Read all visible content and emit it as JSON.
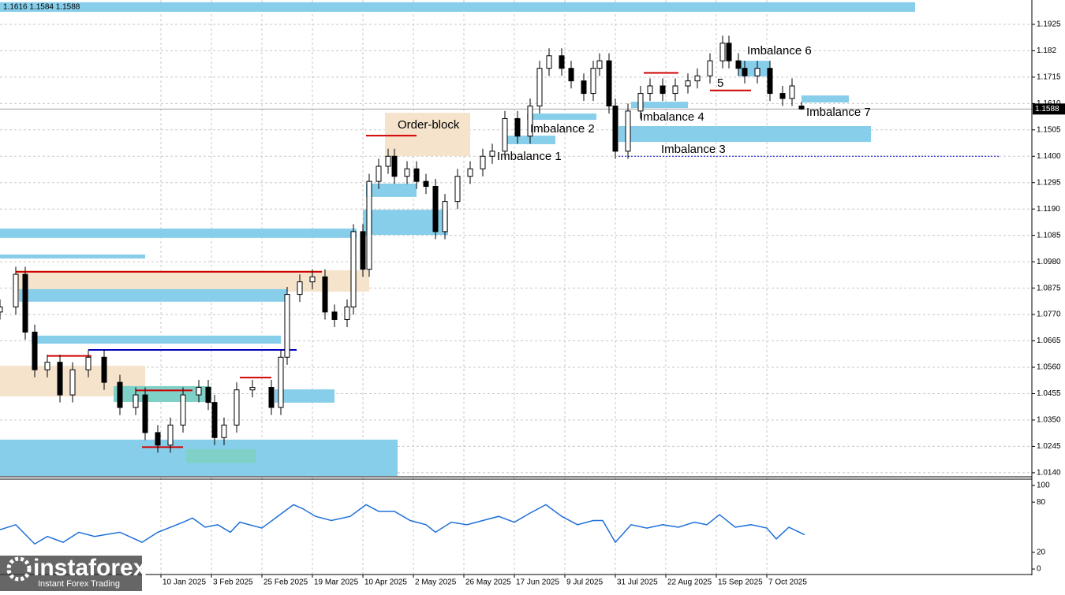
{
  "chart_data": {
    "type": "candlestick",
    "header_text": "1.1616 1.1584 1.1588",
    "last_price": 1.1588,
    "xlim": [
      0,
      327
    ],
    "ylim": [
      1.0124,
      1.2022
    ],
    "grid": true,
    "up_color": "#ffffff",
    "down_color": "#000000",
    "x": [
      0,
      5,
      8,
      11,
      15,
      19,
      23,
      28,
      33,
      38,
      43,
      46,
      50,
      54,
      58,
      63,
      66,
      68,
      71,
      75,
      80,
      86,
      89,
      91,
      95,
      99,
      103,
      106,
      110,
      112,
      115,
      117,
      120,
      123,
      125,
      129,
      132,
      135,
      138,
      141,
      145,
      149,
      153,
      156,
      160,
      164,
      168,
      171,
      174,
      178,
      181,
      185,
      188,
      190,
      193,
      195,
      199,
      203,
      206,
      210,
      214,
      218,
      221,
      225,
      229,
      231,
      234,
      236,
      240,
      244,
      248,
      251,
      254
    ],
    "open": [
      1.078,
      1.08,
      1.093,
      1.07,
      1.055,
      1.058,
      1.045,
      1.055,
      1.06,
      1.05,
      1.04,
      1.045,
      1.03,
      1.025,
      1.033,
      1.045,
      1.048,
      1.042,
      1.028,
      1.033,
      1.047,
      1.048,
      1.04,
      1.06,
      1.085,
      1.09,
      1.092,
      1.078,
      1.075,
      1.08,
      1.11,
      1.095,
      1.13,
      1.136,
      1.14,
      1.132,
      1.135,
      1.13,
      1.128,
      1.11,
      1.122,
      1.132,
      1.135,
      1.14,
      1.142,
      1.155,
      1.148,
      1.16,
      1.175,
      1.18,
      1.175,
      1.17,
      1.165,
      1.175,
      1.178,
      1.16,
      1.142,
      1.158,
      1.165,
      1.168,
      1.165,
      1.168,
      1.17,
      1.172,
      1.178,
      1.185,
      1.178,
      1.175,
      1.172,
      1.175,
      1.165,
      1.163,
      1.16
    ],
    "high": [
      1.083,
      1.096,
      1.096,
      1.073,
      1.061,
      1.061,
      1.058,
      1.063,
      1.063,
      1.053,
      1.048,
      1.048,
      1.033,
      1.036,
      1.048,
      1.051,
      1.051,
      1.045,
      1.036,
      1.05,
      1.051,
      1.051,
      1.063,
      1.088,
      1.093,
      1.095,
      1.095,
      1.081,
      1.083,
      1.113,
      1.113,
      1.133,
      1.139,
      1.143,
      1.143,
      1.138,
      1.138,
      1.133,
      1.131,
      1.125,
      1.135,
      1.138,
      1.143,
      1.145,
      1.158,
      1.158,
      1.163,
      1.178,
      1.183,
      1.183,
      1.178,
      1.173,
      1.178,
      1.181,
      1.181,
      1.163,
      1.161,
      1.168,
      1.171,
      1.171,
      1.171,
      1.173,
      1.175,
      1.181,
      1.188,
      1.188,
      1.181,
      1.178,
      1.178,
      1.178,
      1.168,
      1.171,
      1.1616
    ],
    "low": [
      1.075,
      1.077,
      1.067,
      1.052,
      1.052,
      1.042,
      1.042,
      1.052,
      1.047,
      1.037,
      1.037,
      1.027,
      1.022,
      1.022,
      1.03,
      1.042,
      1.039,
      1.025,
      1.025,
      1.03,
      1.044,
      1.037,
      1.037,
      1.057,
      1.082,
      1.087,
      1.075,
      1.072,
      1.072,
      1.077,
      1.092,
      1.092,
      1.127,
      1.133,
      1.129,
      1.129,
      1.127,
      1.125,
      1.107,
      1.107,
      1.119,
      1.129,
      1.132,
      1.137,
      1.139,
      1.145,
      1.145,
      1.157,
      1.172,
      1.172,
      1.167,
      1.162,
      1.162,
      1.172,
      1.157,
      1.139,
      1.139,
      1.155,
      1.162,
      1.162,
      1.162,
      1.165,
      1.167,
      1.169,
      1.175,
      1.175,
      1.172,
      1.169,
      1.169,
      1.162,
      1.16,
      1.16,
      1.1584
    ],
    "close": [
      1.08,
      1.093,
      1.07,
      1.055,
      1.058,
      1.045,
      1.055,
      1.06,
      1.05,
      1.04,
      1.045,
      1.03,
      1.025,
      1.033,
      1.045,
      1.048,
      1.042,
      1.028,
      1.033,
      1.047,
      1.048,
      1.04,
      1.06,
      1.085,
      1.09,
      1.092,
      1.078,
      1.075,
      1.08,
      1.11,
      1.095,
      1.13,
      1.136,
      1.14,
      1.132,
      1.135,
      1.13,
      1.128,
      1.11,
      1.122,
      1.132,
      1.135,
      1.14,
      1.142,
      1.155,
      1.148,
      1.16,
      1.175,
      1.18,
      1.175,
      1.17,
      1.165,
      1.175,
      1.178,
      1.16,
      1.142,
      1.158,
      1.165,
      1.168,
      1.165,
      1.168,
      1.17,
      1.172,
      1.178,
      1.185,
      1.178,
      1.175,
      1.172,
      1.175,
      1.165,
      1.163,
      1.168,
      1.1588
    ],
    "yticks": [
      1.1925,
      1.182,
      1.1715,
      {
        "value": 1.161,
        "label": "1.1610"
      },
      1.1505,
      {
        "value": 1.14,
        "label": "1.1400"
      },
      1.1295,
      {
        "value": 1.119,
        "label": "1.1190"
      },
      1.1085,
      {
        "value": 1.098,
        "label": "1.0980"
      },
      1.0875,
      {
        "value": 1.077,
        "label": "1.0770"
      },
      1.0665,
      {
        "value": 1.056,
        "label": "1.0560"
      },
      1.0455,
      {
        "value": 1.035,
        "label": "1.0350"
      },
      1.0245,
      {
        "value": 1.014,
        "label": "1.0140"
      }
    ],
    "xticks": [
      {
        "value": 51,
        "label": "10 Jan 2025"
      },
      {
        "value": 67,
        "label": "3 Feb 2025"
      },
      {
        "value": 83,
        "label": "25 Feb 2025"
      },
      {
        "value": 99,
        "label": "19 Mar 2025"
      },
      {
        "value": 115,
        "label": "10 Apr 2025"
      },
      {
        "value": 131,
        "label": "2 May 2025"
      },
      {
        "value": 147,
        "label": "26 May 2025"
      },
      {
        "value": 163,
        "label": "17 Jun 2025"
      },
      {
        "value": 179,
        "label": "9 Jul 2025"
      },
      {
        "value": 195,
        "label": "31 Jul 2025"
      },
      {
        "value": 211,
        "label": "22 Aug 2025"
      },
      {
        "value": 227,
        "label": "15 Sep 2025"
      },
      {
        "value": 243,
        "label": "7 Oct 2025"
      }
    ],
    "zones": [
      {
        "x0": 0,
        "x1": 290,
        "y0": 1.1975,
        "y1": 1.2013,
        "color": "#87ceeb"
      },
      {
        "x0": 0,
        "x1": 126,
        "y0": 1.0127,
        "y1": 1.0272,
        "color": "#87ceeb"
      },
      {
        "x0": 0,
        "x1": 46,
        "y0": 1.0444,
        "y1": 1.0566,
        "color": "#f5e3cc"
      },
      {
        "x0": 5,
        "x1": 117,
        "y0": 1.0861,
        "y1": 1.0946,
        "color": "#f5e3cc"
      },
      {
        "x0": 122,
        "x1": 149,
        "y0": 1.1401,
        "y1": 1.1573,
        "color": "#f5e3cc"
      },
      {
        "x0": 0,
        "x1": 113,
        "y0": 1.1075,
        "y1": 1.1112,
        "color": "#87ceeb"
      },
      {
        "x0": 0,
        "x1": 46,
        "y0": 1.0993,
        "y1": 1.1009,
        "color": "#87ceeb"
      },
      {
        "x0": 6,
        "x1": 91,
        "y0": 1.0821,
        "y1": 1.0871,
        "color": "#87ceeb"
      },
      {
        "x0": 10,
        "x1": 89,
        "y0": 1.0654,
        "y1": 1.0686,
        "color": "#87ceeb"
      },
      {
        "x0": 87,
        "x1": 106,
        "y0": 1.0419,
        "y1": 1.0472,
        "color": "#87ceeb"
      },
      {
        "x0": 36,
        "x1": 67,
        "y0": 1.0422,
        "y1": 1.0485,
        "color": "#7fd1c8"
      },
      {
        "x0": 59,
        "x1": 81,
        "y0": 1.0178,
        "y1": 1.0234,
        "color": "#7fd1c8"
      },
      {
        "x0": 115,
        "x1": 142,
        "y0": 1.1087,
        "y1": 1.1187,
        "color": "#87ceeb"
      },
      {
        "x0": 116,
        "x1": 132,
        "y0": 1.1238,
        "y1": 1.1291,
        "color": "#87ceeb"
      },
      {
        "x0": 160,
        "x1": 176,
        "y0": 1.1448,
        "y1": 1.1482,
        "color": "#87ceeb"
      },
      {
        "x0": 167,
        "x1": 189,
        "y0": 1.1545,
        "y1": 1.157,
        "color": "#87ceeb"
      },
      {
        "x0": 196,
        "x1": 276,
        "y0": 1.1457,
        "y1": 1.152,
        "color": "#87ceeb"
      },
      {
        "x0": 200,
        "x1": 218,
        "y0": 1.1592,
        "y1": 1.1617,
        "color": "#87ceeb"
      },
      {
        "x0": 234,
        "x1": 244,
        "y0": 1.1718,
        "y1": 1.178,
        "color": "#87ceeb"
      },
      {
        "x0": 254,
        "x1": 269,
        "y0": 1.1614,
        "y1": 1.1642,
        "color": "#87ceeb"
      }
    ],
    "levels": [
      {
        "x0": 5,
        "x1": 102,
        "value": 1.094,
        "color": "#d00000"
      },
      {
        "x0": 28,
        "x1": 94,
        "value": 1.0629,
        "color": "#0000c0"
      },
      {
        "x0": 15,
        "x1": 29,
        "value": 1.0605,
        "color": "#d00000"
      },
      {
        "x0": 43,
        "x1": 61,
        "value": 1.0468,
        "color": "#d00000"
      },
      {
        "x0": 45,
        "x1": 58,
        "value": 1.0242,
        "color": "#d00000"
      },
      {
        "x0": 76,
        "x1": 86,
        "value": 1.0519,
        "color": "#d00000"
      },
      {
        "x0": 116,
        "x1": 132,
        "value": 1.1482,
        "color": "#d00000"
      },
      {
        "x0": 204,
        "x1": 215,
        "value": 1.1732,
        "color": "#d00000"
      },
      {
        "x0": 225,
        "x1": 238,
        "value": 1.1662,
        "color": "#d00000"
      },
      {
        "x0": 196,
        "x1": 317,
        "value": 1.14,
        "color": "#0000c0",
        "dashed": true
      }
    ],
    "annotations": [
      "Order-block",
      "Imbalance 1",
      "Imbalance 2",
      "Imbalance 3",
      "Imbalance 4",
      "5",
      "Imbalance 6",
      "Imbalance 7"
    ],
    "indicator": {
      "color": "#1e6fd9",
      "ylim": [
        -5.6,
        107.5
      ],
      "yticks": [
        0,
        20,
        80,
        100
      ],
      "x": [
        0,
        5,
        11,
        15,
        20,
        25,
        30,
        38,
        45,
        50,
        58,
        61,
        65,
        69,
        73,
        76,
        83,
        88,
        93,
        96,
        100,
        105,
        111,
        116,
        120,
        125,
        130,
        135,
        138,
        143,
        148,
        153,
        158,
        163,
        168,
        173,
        178,
        183,
        188,
        191,
        195,
        200,
        205,
        210,
        215,
        220,
        224,
        228,
        233,
        238,
        243,
        246,
        250,
        255
      ],
      "values": [
        47,
        53,
        30,
        39,
        32,
        44,
        39,
        44,
        32,
        44,
        56,
        61,
        50,
        53,
        44,
        56,
        49,
        63,
        77,
        72,
        63,
        58,
        63,
        77,
        69,
        69,
        58,
        53,
        44,
        56,
        53,
        58,
        63,
        56,
        67,
        77,
        63,
        53,
        58,
        58,
        32,
        53,
        49,
        53,
        50,
        56,
        53,
        65,
        50,
        53,
        49,
        36,
        50,
        41
      ]
    }
  },
  "watermark": {
    "name": "instaforex",
    "tagline": "Instant Forex Trading"
  }
}
